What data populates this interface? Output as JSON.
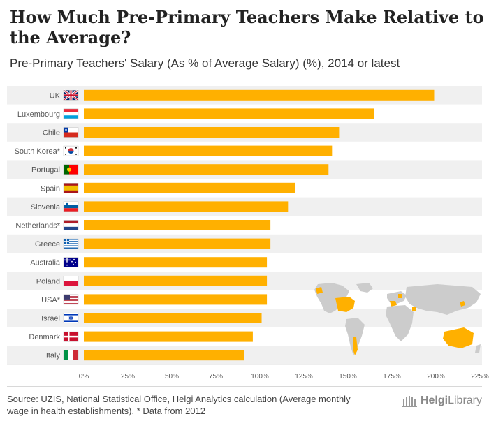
{
  "title": "How Much Pre-Primary Teachers Make Relative to the Average?",
  "subtitle": "Pre-Primary Teachers' Salary (As % of Average Salary) (%), 2014 or latest",
  "source": "Source: UZIS, National Statistical Office, Helgi Analytics calculation (Average monthly wage in health establishments), * Data from 2012",
  "logo": {
    "prefix": "Helgi",
    "suffix": "Library"
  },
  "colors": {
    "bar": "#FFB000",
    "stripe": "#f0f0f0",
    "axis": "#555555",
    "map_land": "#cccccc",
    "map_highlight": "#FFB000"
  },
  "chart_data": {
    "type": "bar",
    "orientation": "horizontal",
    "title": "Pre-Primary Teachers' Salary (As % of Average Salary) (%), 2014 or latest",
    "categories": [
      "UK",
      "Luxembourg",
      "Chile",
      "South Korea*",
      "Portugal",
      "Spain",
      "Slovenia",
      "Netherlands*",
      "Greece",
      "Australia",
      "Poland",
      "USA*",
      "Israel",
      "Denmark",
      "Italy"
    ],
    "values": [
      199,
      165,
      145,
      141,
      139,
      120,
      116,
      106,
      106,
      104,
      104,
      104,
      101,
      96,
      91
    ],
    "xlim": [
      0,
      225
    ],
    "xticks": [
      "0%",
      "25%",
      "50%",
      "75%",
      "100%",
      "125%",
      "150%",
      "175%",
      "200%",
      "225%"
    ],
    "xtick_values": [
      0,
      25,
      50,
      75,
      100,
      125,
      150,
      175,
      200,
      225
    ],
    "flags": [
      "uk",
      "luxembourg",
      "chile",
      "south-korea",
      "portugal",
      "spain",
      "slovenia",
      "netherlands",
      "greece",
      "australia",
      "poland",
      "usa",
      "israel",
      "denmark",
      "italy"
    ]
  }
}
